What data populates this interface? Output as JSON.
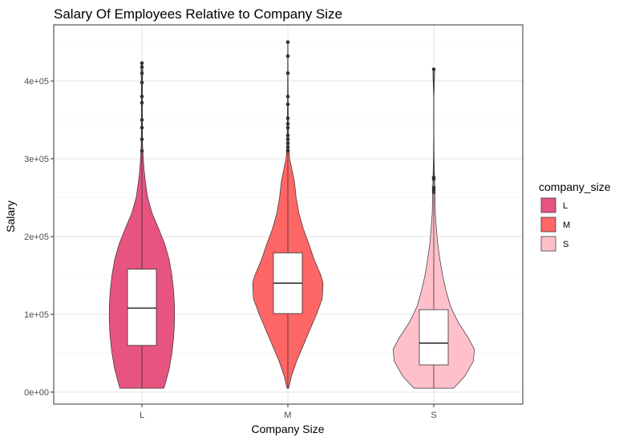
{
  "chart_data": {
    "type": "violin",
    "title": "Salary Of Employees Relative to Company Size",
    "xlabel": "Company Size",
    "ylabel": "Salary",
    "categories": [
      "L",
      "M",
      "S"
    ],
    "ylim": [
      -15000,
      465000
    ],
    "yticks": [
      0,
      100000,
      200000,
      300000,
      400000
    ],
    "ytick_labels": [
      "0e+00",
      "1e+05",
      "2e+05",
      "3e+05",
      "4e+05"
    ],
    "grid": true,
    "legend": {
      "title": "company_size",
      "position": "right",
      "entries": [
        {
          "label": "L",
          "color": "#E75480"
        },
        {
          "label": "M",
          "color": "#FF6666"
        },
        {
          "label": "S",
          "color": "#FFC0CB"
        }
      ]
    },
    "series": [
      {
        "category": "L",
        "color": "#E75480",
        "box": {
          "min": 5000,
          "q1": 60000,
          "median": 108000,
          "q3": 158000,
          "max": 305000
        },
        "outliers": [
          310000,
          325000,
          340000,
          350000,
          372000,
          380000,
          398000,
          410000,
          418000,
          423000
        ],
        "violin": [
          [
            5000,
            0.5
          ],
          [
            15000,
            0.55
          ],
          [
            30000,
            0.62
          ],
          [
            50000,
            0.68
          ],
          [
            70000,
            0.72
          ],
          [
            90000,
            0.74
          ],
          [
            110000,
            0.74
          ],
          [
            130000,
            0.72
          ],
          [
            150000,
            0.68
          ],
          [
            170000,
            0.62
          ],
          [
            190000,
            0.52
          ],
          [
            210000,
            0.38
          ],
          [
            230000,
            0.23
          ],
          [
            250000,
            0.13
          ],
          [
            270000,
            0.08
          ],
          [
            285000,
            0.05
          ],
          [
            300000,
            0.03
          ],
          [
            320000,
            0.015
          ],
          [
            350000,
            0.012
          ],
          [
            380000,
            0.012
          ],
          [
            400000,
            0.015
          ],
          [
            415000,
            0.02
          ],
          [
            423000,
            0.008
          ]
        ]
      },
      {
        "category": "M",
        "color": "#FF6666",
        "box": {
          "min": 5000,
          "q1": 101000,
          "median": 140000,
          "q3": 179000,
          "max": 305000
        },
        "outliers": [
          310000,
          315000,
          320000,
          325000,
          330000,
          340000,
          345000,
          352000,
          370000,
          380000,
          410000,
          432000,
          450000
        ],
        "violin": [
          [
            5000,
            0.02
          ],
          [
            20000,
            0.08
          ],
          [
            40000,
            0.2
          ],
          [
            60000,
            0.35
          ],
          [
            80000,
            0.5
          ],
          [
            100000,
            0.65
          ],
          [
            120000,
            0.78
          ],
          [
            140000,
            0.8
          ],
          [
            150000,
            0.75
          ],
          [
            170000,
            0.6
          ],
          [
            190000,
            0.48
          ],
          [
            210000,
            0.35
          ],
          [
            230000,
            0.25
          ],
          [
            250000,
            0.19
          ],
          [
            270000,
            0.15
          ],
          [
            290000,
            0.08
          ],
          [
            300000,
            0.04
          ],
          [
            320000,
            0.02
          ],
          [
            350000,
            0.01
          ],
          [
            400000,
            0.006
          ],
          [
            450000,
            0.004
          ]
        ]
      },
      {
        "category": "S",
        "color": "#FFC0CB",
        "box": {
          "min": 5000,
          "q1": 35000,
          "median": 63000,
          "q3": 106000,
          "max": 200000
        },
        "outliers": [
          257000,
          260000,
          263000,
          274000,
          276000,
          415000
        ],
        "violin": [
          [
            5000,
            0.45
          ],
          [
            20000,
            0.7
          ],
          [
            40000,
            0.9
          ],
          [
            55000,
            0.92
          ],
          [
            70000,
            0.78
          ],
          [
            90000,
            0.55
          ],
          [
            110000,
            0.38
          ],
          [
            130000,
            0.28
          ],
          [
            150000,
            0.2
          ],
          [
            170000,
            0.14
          ],
          [
            190000,
            0.09
          ],
          [
            210000,
            0.06
          ],
          [
            230000,
            0.035
          ],
          [
            250000,
            0.03
          ],
          [
            270000,
            0.02
          ],
          [
            300000,
            0.008
          ],
          [
            330000,
            0.003
          ],
          [
            380000,
            0.003
          ],
          [
            400000,
            0.015
          ],
          [
            410000,
            0.02
          ],
          [
            416000,
            0.005
          ]
        ]
      }
    ]
  }
}
